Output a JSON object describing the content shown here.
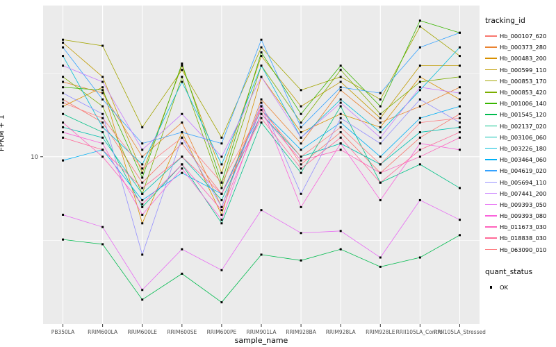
{
  "figure": {
    "ylabel": "FPKM + 1",
    "xlabel": "sample_name",
    "y_tick_label": "10"
  },
  "colors": {
    "panel_background": "#EBEBEB",
    "grid_major": "#FFFFFF",
    "grid_minor": "#FFFFFF",
    "tick_text": "#4D4D4D",
    "point": "#000000"
  },
  "legend": {
    "tracking_title": "tracking_id",
    "quant_title": "quant_status",
    "quant_items": [
      {
        "label": "OK"
      }
    ]
  },
  "chart_data": {
    "type": "line",
    "title": "",
    "xlabel": "sample_name",
    "ylabel": "FPKM + 1",
    "y_scale": "log10",
    "ylim": [
      1,
      80
    ],
    "y_major_breaks": [
      10
    ],
    "y_minor_breaks": [
      3.162,
      31.62
    ],
    "grid": true,
    "legend_position": "right",
    "point_marker": {
      "legend_title": "quant_status",
      "label": "OK",
      "color": "#000000",
      "shape": "square"
    },
    "categories": [
      "PB350LA",
      "RRIM600LA",
      "RRIM600LE",
      "RRIM600SE",
      "RRIM600PE",
      "RRIM901LA",
      "RRIM928BA",
      "RRIM928LA",
      "RRIM928LE",
      "RRII105LA_Control",
      "RRII105LA_Stressed"
    ],
    "series": [
      {
        "name": "Hb_000107_620",
        "color": "#F8766D",
        "values": [
          22,
          16,
          7,
          12,
          6,
          20,
          9,
          14,
          8,
          13,
          18
        ]
      },
      {
        "name": "Hb_000373_280",
        "color": "#EA8331",
        "values": [
          28,
          24,
          10,
          16,
          5,
          22,
          12,
          25,
          16,
          20,
          26
        ]
      },
      {
        "name": "Hb_000483_200",
        "color": "#D89000",
        "values": [
          20,
          26,
          4,
          14,
          4.5,
          30,
          14,
          18,
          15,
          30,
          22
        ]
      },
      {
        "name": "Hb_000599_110",
        "color": "#C09B00",
        "values": [
          48,
          30,
          8,
          35,
          8,
          40,
          20,
          28,
          17,
          35,
          35
        ]
      },
      {
        "name": "Hb_000853_170",
        "color": "#A3A500",
        "values": [
          50,
          46,
          15,
          33,
          13,
          45,
          25,
          30,
          22,
          60,
          40
        ]
      },
      {
        "name": "Hb_000853_420",
        "color": "#7CAE00",
        "values": [
          30,
          20,
          6,
          30,
          6.5,
          35,
          16,
          33,
          18,
          28,
          30
        ]
      },
      {
        "name": "Hb_001006_140",
        "color": "#39B600",
        "values": [
          26,
          25,
          7.5,
          36,
          7,
          42,
          18,
          35,
          20,
          65,
          55
        ]
      },
      {
        "name": "Hb_001545_120",
        "color": "#00BB4E",
        "values": [
          3.2,
          3.0,
          1.4,
          2.0,
          1.35,
          2.6,
          2.4,
          2.8,
          2.2,
          2.5,
          3.4
        ]
      },
      {
        "name": "Hb_002137_020",
        "color": "#00C087",
        "values": [
          18,
          14,
          5,
          9,
          4,
          16,
          8,
          20,
          7,
          9,
          6.5
        ]
      },
      {
        "name": "Hb_003106_060",
        "color": "#00C0AF",
        "values": [
          15,
          13,
          6,
          10,
          5.5,
          18,
          10,
          12,
          9,
          14,
          15
        ]
      },
      {
        "name": "Hb_003226_180",
        "color": "#00BCD8",
        "values": [
          40,
          15,
          9,
          28,
          9,
          35,
          13,
          22,
          14,
          25,
          45
        ]
      },
      {
        "name": "Hb_003464_060",
        "color": "#00B0F6",
        "values": [
          9.5,
          11,
          5.5,
          8,
          6,
          19,
          11,
          16,
          10,
          17,
          20
        ]
      },
      {
        "name": "Hb_004619_020",
        "color": "#35A2FF",
        "values": [
          45,
          22,
          12,
          14,
          12,
          50,
          15,
          26,
          24,
          45,
          55
        ]
      },
      {
        "name": "Hb_005694_110",
        "color": "#9590FF",
        "values": [
          24,
          18,
          2.6,
          13,
          5,
          21,
          6,
          17,
          12,
          22,
          16
        ]
      },
      {
        "name": "Hb_007441_200",
        "color": "#C77CFF",
        "values": [
          35,
          28,
          11,
          18,
          10,
          30,
          13,
          21,
          13,
          26,
          24
        ]
      },
      {
        "name": "Hb_009393_050",
        "color": "#E76BF3",
        "values": [
          4.5,
          3.8,
          1.6,
          2.8,
          2.1,
          4.8,
          3.5,
          3.6,
          2.5,
          5.5,
          4.2
        ]
      },
      {
        "name": "Hb_009393_080",
        "color": "#FA62DB",
        "values": [
          14,
          12,
          4.5,
          8.5,
          4.2,
          20,
          5,
          12,
          5.5,
          12,
          11
        ]
      },
      {
        "name": "Hb_011673_030",
        "color": "#FF62BC",
        "values": [
          16,
          10,
          5.2,
          9,
          4.8,
          18,
          9.5,
          11,
          8,
          10,
          13
        ]
      },
      {
        "name": "Hb_018838_030",
        "color": "#FF6A98",
        "values": [
          13,
          11,
          6.5,
          10,
          6,
          17,
          8.5,
          13,
          7,
          11,
          14
        ]
      },
      {
        "name": "Hb_063090_010",
        "color": "#FE8185",
        "values": [
          21,
          17,
          8.5,
          13,
          7,
          19,
          10,
          15,
          9,
          16,
          17
        ]
      }
    ]
  }
}
